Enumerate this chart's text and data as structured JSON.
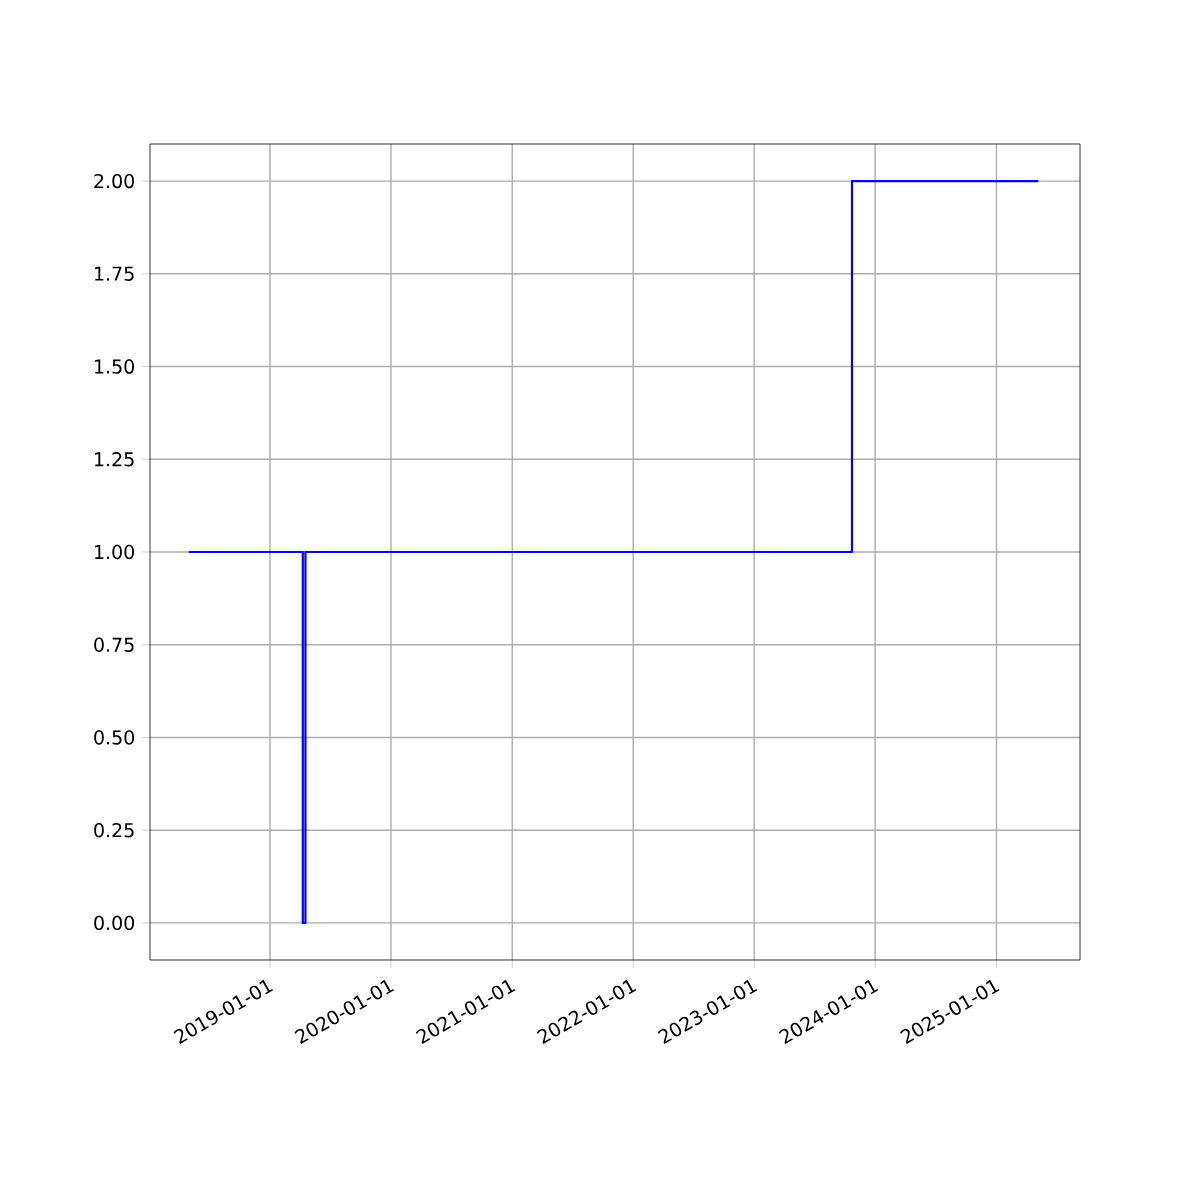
{
  "chart_data": {
    "type": "step",
    "x": [
      "2018-05-01",
      "2019-04-10",
      "2019-04-18",
      "2023-10-23",
      "2025-05-07"
    ],
    "series": [
      {
        "color": "#0000ff",
        "values": [
          1,
          0,
          1,
          2,
          2
        ]
      }
    ],
    "xlim": [
      "2018-01-04",
      "2025-09-10"
    ],
    "xticks": [
      "2019-01-01",
      "2020-01-01",
      "2021-01-01",
      "2022-01-01",
      "2023-01-01",
      "2024-01-01",
      "2025-01-01"
    ],
    "ylim": [
      -0.1,
      2.1
    ],
    "yticks": [
      {
        "value": 0,
        "label": "0.00"
      },
      {
        "value": 0.25,
        "label": "0.25"
      },
      {
        "value": 0.5,
        "label": "0.50"
      },
      {
        "value": 0.75,
        "label": "0.75"
      },
      {
        "value": 1,
        "label": "1.00"
      },
      {
        "value": 1.25,
        "label": "1.25"
      },
      {
        "value": 1.5,
        "label": "1.50"
      },
      {
        "value": 1.75,
        "label": "1.75"
      },
      {
        "value": 2,
        "label": "2.00"
      }
    ],
    "grid": true
  }
}
